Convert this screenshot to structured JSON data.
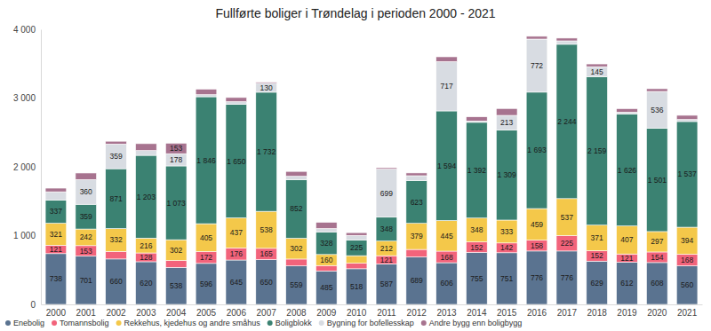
{
  "chart_data": {
    "type": "bar",
    "stacked": true,
    "data_labels": true,
    "grid": false,
    "legend": "bottom-left",
    "title": "Fullførte boliger i Trøndelag i perioden 2000 - 2021",
    "categories": [
      "2000",
      "2001",
      "2002",
      "2003",
      "2004",
      "2005",
      "2006",
      "2007",
      "2008",
      "2009",
      "2010",
      "2011",
      "2012",
      "2013",
      "2014",
      "2015",
      "2016",
      "2017",
      "2018",
      "2019",
      "2020",
      "2021"
    ],
    "ylim": [
      0,
      4000
    ],
    "yticks": [
      0,
      {
        "value": 1000,
        "label": "1 000"
      },
      {
        "value": 2000,
        "label": "2 000"
      },
      {
        "value": 3000,
        "label": "3 000"
      },
      {
        "value": 4000,
        "label": "4 000"
      }
    ],
    "series": [
      {
        "name": "Enebolig",
        "color": "#5a7390",
        "values": [
          738,
          701,
          660,
          620,
          538,
          596,
          645,
          650,
          559,
          485,
          518,
          587,
          689,
          606,
          755,
          751,
          776,
          776,
          629,
          612,
          608,
          560
        ],
        "value_labels": [
          "738",
          "701",
          "660",
          "620",
          "538",
          "596",
          "645",
          "650",
          "559",
          "485",
          "518",
          "587",
          "689",
          "606",
          "755",
          "751",
          "776",
          "776",
          "629",
          "612",
          "608",
          "560"
        ]
      },
      {
        "name": "Tomannsbolig",
        "color": "#f2637b",
        "values": [
          121,
          153,
          110,
          128,
          100,
          172,
          176,
          165,
          100,
          80,
          80,
          121,
          110,
          168,
          152,
          142,
          158,
          225,
          152,
          121,
          154,
          168
        ],
        "value_labels": [
          "121",
          "153",
          null,
          "128",
          null,
          "172",
          "176",
          "165",
          null,
          null,
          null,
          "121",
          null,
          "168",
          "152",
          "142",
          "158",
          "225",
          "152",
          "121",
          "154",
          "168"
        ]
      },
      {
        "name": "Rekkehus, kjedehus og andre småhus",
        "color": "#f4c84a",
        "values": [
          321,
          242,
          332,
          216,
          302,
          405,
          437,
          538,
          302,
          160,
          110,
          212,
          379,
          445,
          348,
          333,
          459,
          537,
          371,
          407,
          297,
          394
        ],
        "value_labels": [
          "321",
          "242",
          "332",
          "216",
          "302",
          "405",
          "437",
          "538",
          "302",
          "160",
          null,
          "212",
          "379",
          "445",
          "348",
          "333",
          "459",
          "537",
          "371",
          "407",
          "297",
          "394"
        ]
      },
      {
        "name": "Boligblokk",
        "color": "#3b8272",
        "values": [
          337,
          359,
          871,
          1203,
          1073,
          1846,
          1650,
          1732,
          852,
          328,
          225,
          348,
          623,
          1594,
          1392,
          1309,
          1693,
          2244,
          2159,
          1626,
          1501,
          1537
        ],
        "value_labels": [
          "337",
          "359",
          "871",
          "1 203",
          "1 073",
          "1 846",
          "1 650",
          "1 732",
          "852",
          "328",
          "225",
          "348",
          "623",
          "1 594",
          "1 392",
          "1 309",
          "1 693",
          "2 244",
          "2 159",
          "1 626",
          "1 501",
          "1 537"
        ]
      },
      {
        "name": "Bygning for bofellesskap",
        "color": "#d8dce2",
        "values": [
          120,
          360,
          359,
          70,
          178,
          30,
          40,
          130,
          50,
          50,
          70,
          699,
          70,
          717,
          20,
          213,
          772,
          50,
          145,
          30,
          536,
          30
        ],
        "value_labels": [
          null,
          "360",
          "359",
          null,
          "178",
          null,
          null,
          "130",
          null,
          null,
          null,
          "699",
          null,
          "717",
          null,
          "213",
          "772",
          null,
          "145",
          null,
          "536",
          null
        ]
      },
      {
        "name": "Andre bygg enn boligbygg",
        "color": "#a7738f",
        "values": [
          53,
          95,
          40,
          100,
          153,
          80,
          60,
          15,
          70,
          90,
          40,
          20,
          40,
          70,
          60,
          100,
          40,
          40,
          40,
          50,
          40,
          60
        ],
        "value_labels": [
          null,
          null,
          null,
          null,
          "153",
          null,
          null,
          null,
          null,
          null,
          null,
          null,
          null,
          null,
          null,
          null,
          null,
          null,
          null,
          null,
          null,
          null
        ]
      }
    ]
  }
}
